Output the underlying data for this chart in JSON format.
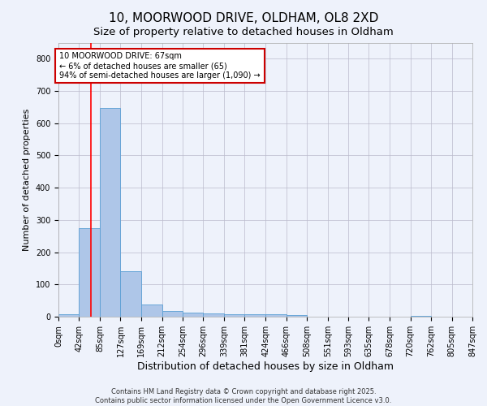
{
  "title": "10, MOORWOOD DRIVE, OLDHAM, OL8 2XD",
  "subtitle": "Size of property relative to detached houses in Oldham",
  "xlabel": "Distribution of detached houses by size in Oldham",
  "ylabel": "Number of detached properties",
  "bin_edges": [
    0,
    42,
    85,
    127,
    169,
    212,
    254,
    296,
    339,
    381,
    424,
    466,
    508,
    551,
    593,
    635,
    678,
    720,
    762,
    805,
    847
  ],
  "bin_labels": [
    "0sqm",
    "42sqm",
    "85sqm",
    "127sqm",
    "169sqm",
    "212sqm",
    "254sqm",
    "296sqm",
    "339sqm",
    "381sqm",
    "424sqm",
    "466sqm",
    "508sqm",
    "551sqm",
    "593sqm",
    "635sqm",
    "678sqm",
    "720sqm",
    "762sqm",
    "805sqm",
    "847sqm"
  ],
  "counts": [
    8,
    275,
    648,
    140,
    38,
    18,
    12,
    10,
    8,
    8,
    7,
    5,
    0,
    0,
    0,
    0,
    0,
    3,
    0,
    0,
    0
  ],
  "bar_color": "#aec6e8",
  "bar_edge_color": "#5a9fd4",
  "red_line_x": 67,
  "annotation_line1": "10 MOORWOOD DRIVE: 67sqm",
  "annotation_line2": "← 6% of detached houses are smaller (65)",
  "annotation_line3": "94% of semi-detached houses are larger (1,090) →",
  "annotation_box_color": "#ffffff",
  "annotation_box_edge_color": "#cc0000",
  "ylim": [
    0,
    850
  ],
  "yticks": [
    0,
    100,
    200,
    300,
    400,
    500,
    600,
    700,
    800
  ],
  "footer1": "Contains HM Land Registry data © Crown copyright and database right 2025.",
  "footer2": "Contains public sector information licensed under the Open Government Licence v3.0.",
  "background_color": "#eef2fb",
  "grid_color": "#bbbbcc",
  "title_fontsize": 11,
  "subtitle_fontsize": 9.5,
  "ylabel_fontsize": 8,
  "xlabel_fontsize": 9,
  "tick_fontsize": 7,
  "footer_fontsize": 6
}
